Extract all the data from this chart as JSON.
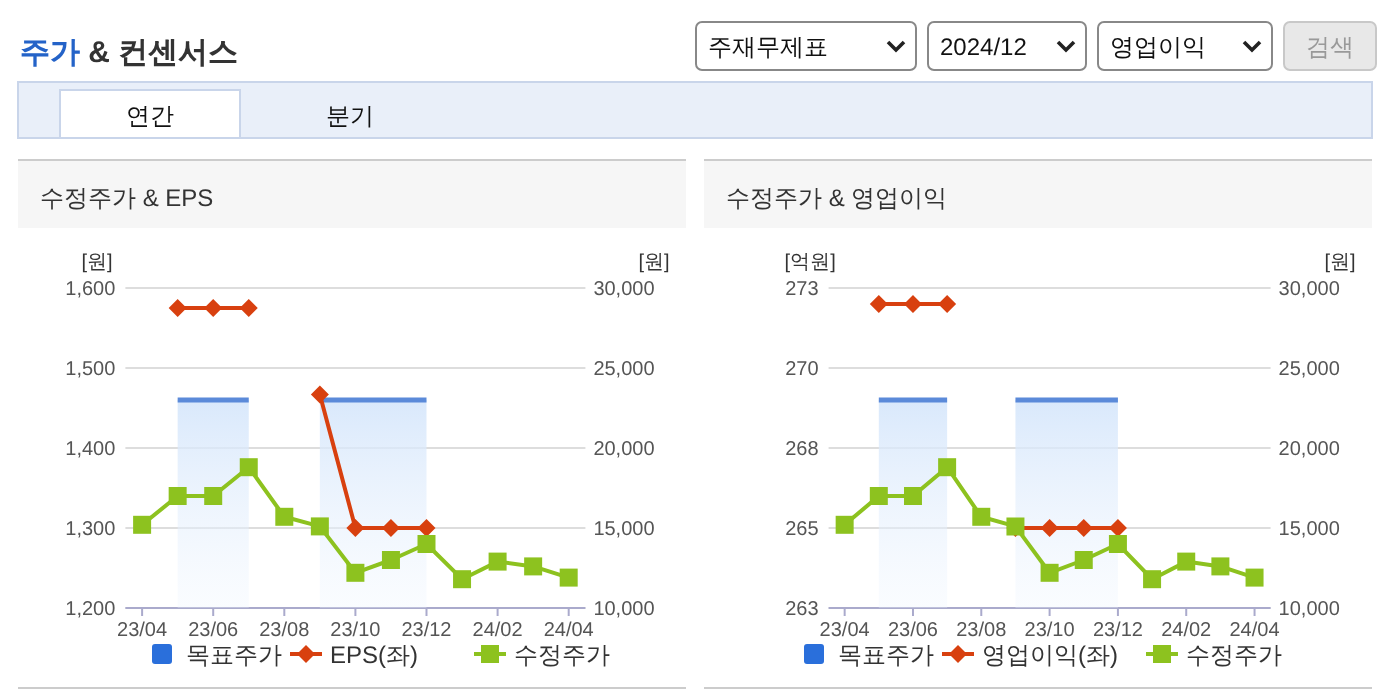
{
  "chart_data": [
    {
      "type": "other",
      "title": "주가 & 컨센서스",
      "annotations": [
        "주재무제표",
        "2024/12",
        "영업이익",
        "검색",
        "연간",
        "분기"
      ]
    },
    {
      "type": "line",
      "title": "수정주가 & EPS",
      "ylabel": "[원]",
      "y2label": "[원]",
      "categories": [
        "23/04",
        null,
        "23/06",
        null,
        "23/08",
        null,
        "23/10",
        null,
        "23/12",
        null,
        "24/02",
        null,
        "24/04"
      ],
      "ylim": [
        1200,
        1600
      ],
      "yticks": [
        {
          "value": 1200,
          "label": "1,200"
        },
        {
          "value": 1300,
          "label": "1,300"
        },
        {
          "value": 1400,
          "label": "1,400"
        },
        {
          "value": 1500,
          "label": "1,500"
        },
        {
          "value": 1600,
          "label": "1,600"
        }
      ],
      "y2lim": [
        10000,
        30000
      ],
      "y2ticks": [
        {
          "value": 10000,
          "label": "10,000"
        },
        {
          "value": 15000,
          "label": "15,000"
        },
        {
          "value": 20000,
          "label": "20,000"
        },
        {
          "value": 25000,
          "label": "25,000"
        },
        {
          "value": 30000,
          "label": "30,000"
        }
      ],
      "grid": "y",
      "legend": "bottom",
      "series": [
        {
          "name": "목표주가",
          "type": "area",
          "axis": "y2",
          "color": "#5b8ad9",
          "values": [
            null,
            23000,
            23000,
            23000,
            null,
            23000,
            23000,
            23000,
            23000,
            null,
            null,
            null,
            null
          ]
        },
        {
          "name": "EPS(좌)",
          "type": "line",
          "color": "#d8400f",
          "marker": "diamond",
          "values": [
            null,
            1575,
            1575,
            1575,
            null,
            1467,
            1300,
            1300,
            1300,
            null,
            null,
            null,
            null
          ]
        },
        {
          "name": "수정주가",
          "type": "line",
          "axis": "y2",
          "color": "#8dc21f",
          "marker": "square",
          "values": [
            15200,
            17000,
            17000,
            18800,
            15700,
            15100,
            12200,
            13000,
            14000,
            11800,
            12900,
            12600,
            11900
          ]
        }
      ]
    },
    {
      "type": "line",
      "title": "수정주가 & 영업이익",
      "ylabel": "[억원]",
      "y2label": "[원]",
      "categories": [
        "23/04",
        null,
        "23/06",
        null,
        "23/08",
        null,
        "23/10",
        null,
        "23/12",
        null,
        "24/02",
        null,
        "24/04"
      ],
      "ylim": [
        262.5,
        272.5
      ],
      "yticks": [
        {
          "value": 262.5,
          "label": "263"
        },
        {
          "value": 265,
          "label": "265"
        },
        {
          "value": 267.5,
          "label": "268"
        },
        {
          "value": 270,
          "label": "270"
        },
        {
          "value": 272.5,
          "label": "273"
        }
      ],
      "y2lim": [
        10000,
        30000
      ],
      "y2ticks": [
        {
          "value": 10000,
          "label": "10,000"
        },
        {
          "value": 15000,
          "label": "15,000"
        },
        {
          "value": 20000,
          "label": "20,000"
        },
        {
          "value": 25000,
          "label": "25,000"
        },
        {
          "value": 30000,
          "label": "30,000"
        }
      ],
      "grid": "y",
      "legend": "bottom",
      "series": [
        {
          "name": "목표주가",
          "type": "area",
          "axis": "y2",
          "color": "#5b8ad9",
          "values": [
            null,
            23000,
            23000,
            23000,
            null,
            23000,
            23000,
            23000,
            23000,
            null,
            null,
            null,
            null
          ]
        },
        {
          "name": "영업이익(좌)",
          "type": "line",
          "color": "#d8400f",
          "marker": "diamond",
          "values": [
            null,
            272,
            272,
            272,
            null,
            265,
            265,
            265,
            265,
            null,
            null,
            null,
            null
          ]
        },
        {
          "name": "수정주가",
          "type": "line",
          "axis": "y2",
          "color": "#8dc21f",
          "marker": "square",
          "values": [
            15200,
            17000,
            17000,
            18800,
            15700,
            15100,
            12200,
            13000,
            14000,
            11800,
            12900,
            12600,
            11900
          ]
        }
      ]
    }
  ]
}
